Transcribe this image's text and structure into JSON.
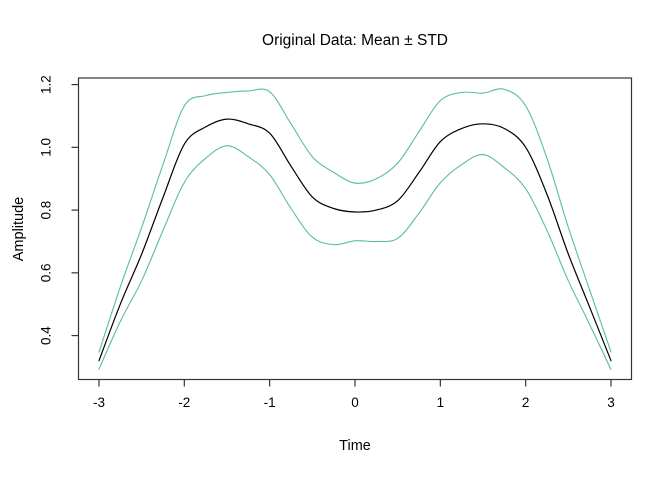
{
  "chart_data": {
    "type": "line",
    "title": "Original Data: Mean ± STD",
    "xlabel": "Time",
    "ylabel": "Amplitude",
    "xlim": [
      -3.24,
      3.24
    ],
    "ylim": [
      0.26,
      1.221
    ],
    "xticks": [
      -3,
      -2,
      -1,
      0,
      1,
      2,
      3
    ],
    "xticklabels": [
      "-3",
      "-2",
      "-1",
      "0",
      "1",
      "2",
      "3"
    ],
    "yticks": [
      0.4,
      0.6,
      0.8,
      1.0,
      1.2
    ],
    "yticklabels": [
      "0.4",
      "0.6",
      "0.8",
      "1.0",
      "1.2"
    ],
    "grid": false,
    "legend": "none",
    "colors": {
      "mean": "#000000",
      "std_band": "#5abe96"
    },
    "x": [
      -3,
      -2.75,
      -2.5,
      -2.25,
      -2,
      -1.75,
      -1.5,
      -1.25,
      -1,
      -0.75,
      -0.5,
      -0.25,
      0,
      0.25,
      0.5,
      0.75,
      1,
      1.25,
      1.5,
      1.75,
      2,
      2.25,
      2.5,
      2.75,
      3
    ],
    "series": [
      {
        "name": "mean-plus-std",
        "color": "#5abe96",
        "width": 1.1,
        "values": [
          0.347,
          0.555,
          0.745,
          0.945,
          1.132,
          1.165,
          1.175,
          1.18,
          1.177,
          1.075,
          0.97,
          0.92,
          0.886,
          0.9,
          0.95,
          1.05,
          1.149,
          1.175,
          1.173,
          1.185,
          1.132,
          0.965,
          0.745,
          0.545,
          0.348
        ]
      },
      {
        "name": "mean-minus-std",
        "color": "#5abe96",
        "width": 1.1,
        "values": [
          0.293,
          0.445,
          0.575,
          0.735,
          0.888,
          0.965,
          1.005,
          0.97,
          0.913,
          0.805,
          0.714,
          0.69,
          0.702,
          0.7,
          0.71,
          0.79,
          0.887,
          0.945,
          0.977,
          0.935,
          0.868,
          0.735,
          0.575,
          0.435,
          0.292
        ]
      },
      {
        "name": "mean",
        "color": "#000000",
        "width": 1.2,
        "values": [
          0.32,
          0.5,
          0.66,
          0.84,
          1.01,
          1.065,
          1.09,
          1.075,
          1.045,
          0.94,
          0.842,
          0.805,
          0.794,
          0.8,
          0.83,
          0.92,
          1.018,
          1.06,
          1.075,
          1.06,
          1.0,
          0.85,
          0.66,
          0.49,
          0.32
        ]
      }
    ]
  }
}
